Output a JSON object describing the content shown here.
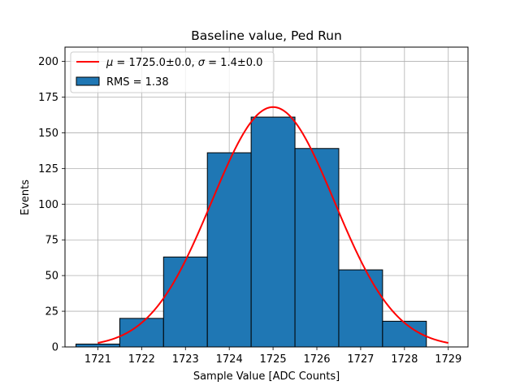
{
  "chart_data": {
    "type": "bar",
    "title": "Baseline value, Ped Run",
    "xlabel": "Sample Value [ADC Counts]",
    "ylabel": "Events",
    "xlim": [
      1720.25,
      1729.45
    ],
    "ylim": [
      0,
      210
    ],
    "xticks": [
      1721,
      1722,
      1723,
      1724,
      1725,
      1726,
      1727,
      1728,
      1729
    ],
    "yticks": [
      0,
      25,
      50,
      75,
      100,
      125,
      150,
      175,
      200
    ],
    "grid": true,
    "legend_position": "upper-left",
    "histogram": {
      "name": "RMS = 1.38",
      "bin_edges": [
        1720.5,
        1721.5,
        1722.5,
        1723.5,
        1724.5,
        1725.5,
        1726.5,
        1727.5,
        1728.5
      ],
      "bin_centers": [
        1721,
        1722,
        1723,
        1724,
        1725,
        1726,
        1727,
        1728
      ],
      "values": [
        2,
        20,
        63,
        136,
        161,
        139,
        54,
        18
      ],
      "color": "#1f77b4",
      "edgecolor": "#000000"
    },
    "fit": {
      "name_prefix": "μ = 1725.0±0.0, σ = 1.4±0.0",
      "mu": 1725.0,
      "sigma": 1.4,
      "amplitude": 168,
      "x_range": [
        1721,
        1729
      ],
      "color": "#ff0000"
    },
    "legend": [
      {
        "label_mu_sym": "μ",
        "label_mu_val": " = 1725.0±0.0, ",
        "label_sigma_sym": "σ",
        "label_sigma_val": " = 1.4±0.0"
      },
      {
        "label": "RMS = 1.38"
      }
    ]
  }
}
